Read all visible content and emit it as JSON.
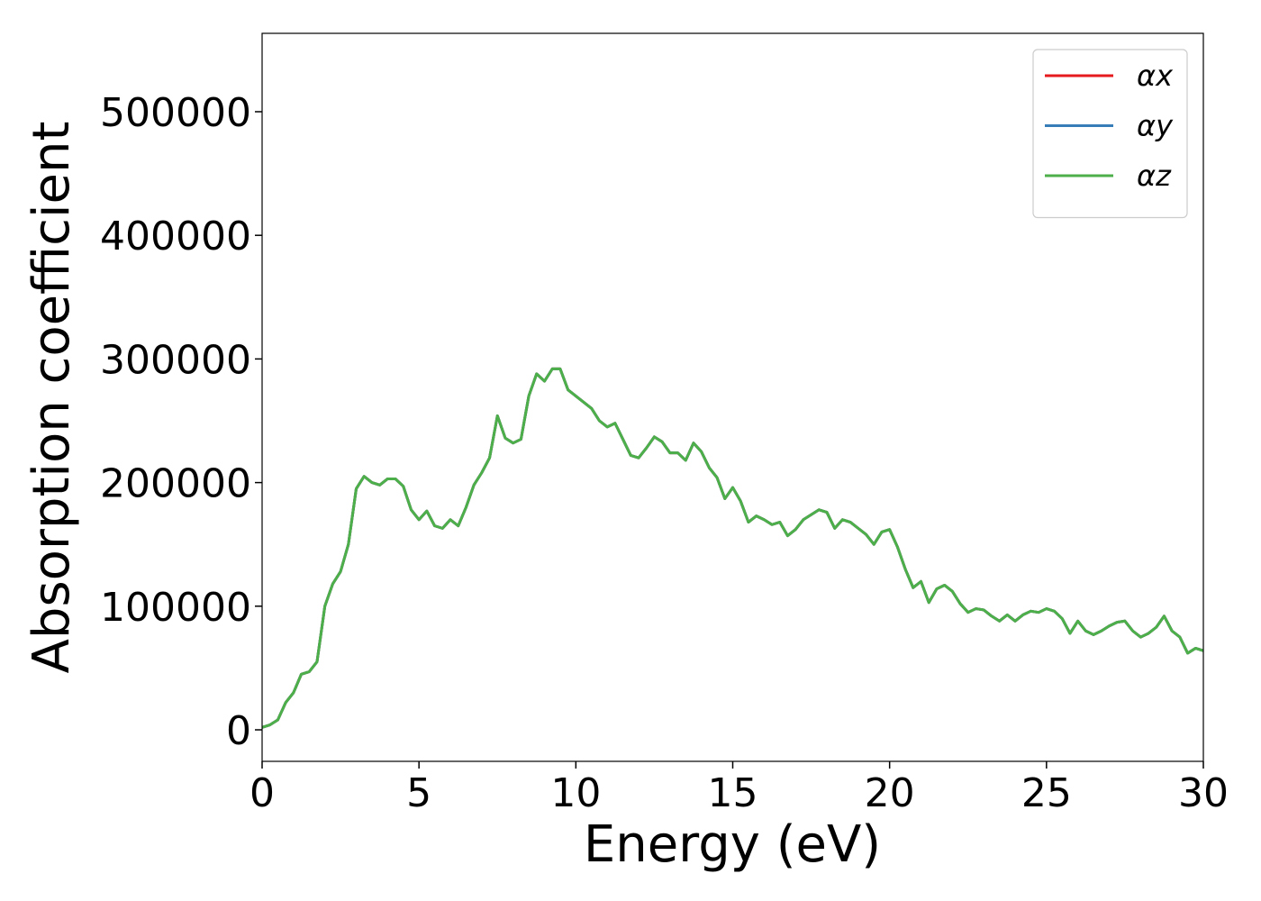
{
  "chart_data": {
    "type": "line",
    "xlabel": "Energy (eV)",
    "ylabel": "Absorption coefficient",
    "x": [
      0,
      0.25,
      0.5,
      0.75,
      1,
      1.25,
      1.5,
      1.75,
      2,
      2.25,
      2.5,
      2.75,
      3,
      3.25,
      3.5,
      3.75,
      4,
      4.25,
      4.5,
      4.75,
      5,
      5.25,
      5.5,
      5.75,
      6,
      6.25,
      6.5,
      6.75,
      7,
      7.25,
      7.5,
      7.75,
      8,
      8.25,
      8.5,
      8.75,
      9,
      9.25,
      9.5,
      9.75,
      10,
      10.25,
      10.5,
      10.75,
      11,
      11.25,
      11.5,
      11.75,
      12,
      12.25,
      12.5,
      12.75,
      13,
      13.25,
      13.5,
      13.75,
      14,
      14.25,
      14.5,
      14.75,
      15,
      15.25,
      15.5,
      15.75,
      16,
      16.25,
      16.5,
      16.75,
      17,
      17.25,
      17.5,
      17.75,
      18,
      18.25,
      18.5,
      18.75,
      19,
      19.25,
      19.5,
      19.75,
      20,
      20.25,
      20.5,
      20.75,
      21,
      21.25,
      21.5,
      21.75,
      22,
      22.25,
      22.5,
      22.75,
      23,
      23.25,
      23.5,
      23.75,
      24,
      24.25,
      24.5,
      24.75,
      25,
      25.25,
      25.5,
      25.75,
      26,
      26.25,
      26.5,
      26.75,
      27,
      27.25,
      27.5,
      27.75,
      28,
      28.25,
      28.5,
      28.75,
      29,
      29.25,
      29.5,
      29.75,
      30
    ],
    "series": [
      {
        "name": "αx",
        "color": "#e41a1c",
        "values": [
          2000,
          4000,
          8000,
          22000,
          30000,
          45000,
          47000,
          55000,
          100000,
          118000,
          128000,
          150000,
          195000,
          205000,
          200000,
          198000,
          203000,
          203000,
          197000,
          178000,
          170000,
          177000,
          165000,
          163000,
          170000,
          165000,
          180000,
          198000,
          208000,
          220000,
          254000,
          236000,
          232000,
          235000,
          270000,
          288000,
          282000,
          292000,
          292000,
          275000,
          270000,
          265000,
          260000,
          250000,
          245000,
          248000,
          235000,
          222000,
          220000,
          228000,
          237000,
          233000,
          224000,
          224000,
          218000,
          232000,
          225000,
          212000,
          204000,
          187000,
          196000,
          185000,
          168000,
          173000,
          170000,
          166000,
          168000,
          157000,
          162000,
          170000,
          174000,
          178000,
          176000,
          163000,
          170000,
          168000,
          163000,
          158000,
          150000,
          160000,
          162000,
          148000,
          130000,
          115000,
          120000,
          103000,
          114000,
          117000,
          112000,
          102000,
          95000,
          98000,
          97000,
          92000,
          88000,
          93000,
          88000,
          93000,
          96000,
          95000,
          98000,
          96000,
          90000,
          78000,
          88000,
          80000,
          77000,
          80000,
          84000,
          87000,
          88000,
          80000,
          75000,
          78000,
          83000,
          92000,
          80000,
          75000,
          62000,
          66000,
          64000
        ]
      },
      {
        "name": "αy",
        "color": "#377eb8",
        "values": [
          2000,
          4000,
          8000,
          22000,
          30000,
          45000,
          47000,
          55000,
          100000,
          118000,
          128000,
          150000,
          195000,
          205000,
          200000,
          198000,
          203000,
          203000,
          197000,
          178000,
          170000,
          177000,
          165000,
          163000,
          170000,
          165000,
          180000,
          198000,
          208000,
          220000,
          254000,
          236000,
          232000,
          235000,
          270000,
          288000,
          282000,
          292000,
          292000,
          275000,
          270000,
          265000,
          260000,
          250000,
          245000,
          248000,
          235000,
          222000,
          220000,
          228000,
          237000,
          233000,
          224000,
          224000,
          218000,
          232000,
          225000,
          212000,
          204000,
          187000,
          196000,
          185000,
          168000,
          173000,
          170000,
          166000,
          168000,
          157000,
          162000,
          170000,
          174000,
          178000,
          176000,
          163000,
          170000,
          168000,
          163000,
          158000,
          150000,
          160000,
          162000,
          148000,
          130000,
          115000,
          120000,
          103000,
          114000,
          117000,
          112000,
          102000,
          95000,
          98000,
          97000,
          92000,
          88000,
          93000,
          88000,
          93000,
          96000,
          95000,
          98000,
          96000,
          90000,
          78000,
          88000,
          80000,
          77000,
          80000,
          84000,
          87000,
          88000,
          80000,
          75000,
          78000,
          83000,
          92000,
          80000,
          75000,
          62000,
          66000,
          64000
        ]
      },
      {
        "name": "αz",
        "color": "#4daf4a",
        "values": [
          2000,
          4000,
          8000,
          22000,
          30000,
          45000,
          47000,
          55000,
          100000,
          118000,
          128000,
          150000,
          195000,
          205000,
          200000,
          198000,
          203000,
          203000,
          197000,
          178000,
          170000,
          177000,
          165000,
          163000,
          170000,
          165000,
          180000,
          198000,
          208000,
          220000,
          254000,
          236000,
          232000,
          235000,
          270000,
          288000,
          282000,
          292000,
          292000,
          275000,
          270000,
          265000,
          260000,
          250000,
          245000,
          248000,
          235000,
          222000,
          220000,
          228000,
          237000,
          233000,
          224000,
          224000,
          218000,
          232000,
          225000,
          212000,
          204000,
          187000,
          196000,
          185000,
          168000,
          173000,
          170000,
          166000,
          168000,
          157000,
          162000,
          170000,
          174000,
          178000,
          176000,
          163000,
          170000,
          168000,
          163000,
          158000,
          150000,
          160000,
          162000,
          148000,
          130000,
          115000,
          120000,
          103000,
          114000,
          117000,
          112000,
          102000,
          95000,
          98000,
          97000,
          92000,
          88000,
          93000,
          88000,
          93000,
          96000,
          95000,
          98000,
          96000,
          90000,
          78000,
          88000,
          80000,
          77000,
          80000,
          84000,
          87000,
          88000,
          80000,
          75000,
          78000,
          83000,
          92000,
          80000,
          75000,
          62000,
          66000,
          64000
        ]
      }
    ],
    "xlim": [
      0,
      30
    ],
    "xticks": [
      0,
      5,
      10,
      15,
      20,
      25,
      30
    ],
    "ylim": [
      -25500,
      563400
    ],
    "yticks": [
      0,
      100000,
      200000,
      300000,
      400000,
      500000
    ],
    "grid": false,
    "legend": "upper right"
  }
}
